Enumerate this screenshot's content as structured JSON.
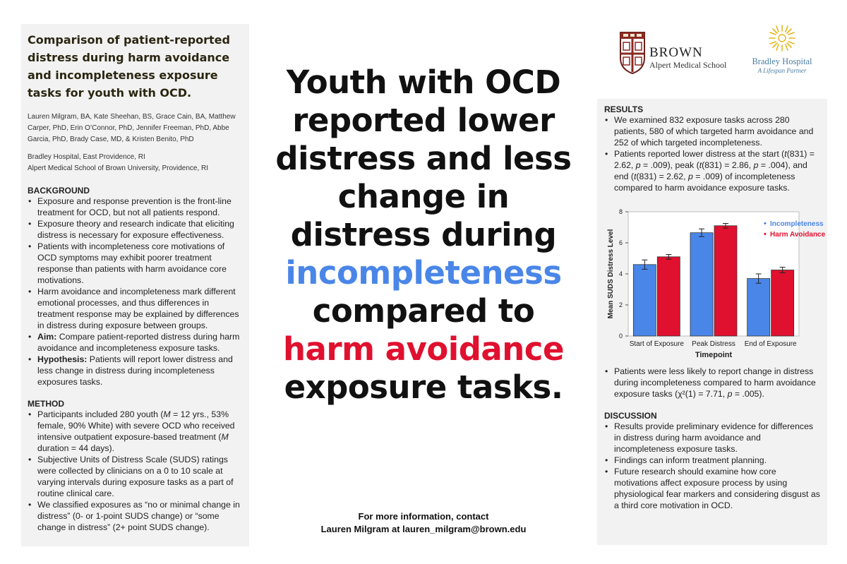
{
  "left": {
    "title": "Comparison of patient-reported distress during harm avoidance and incompleteness exposure tasks for youth with OCD.",
    "authors": "Lauren Milgram, BA, Kate Sheehan, BS, Grace Cain, BA, Matthew Carper, PhD, Erin O’Connor, PhD, Jennifer Freeman, PhD, Abbe Garcia, PhD, Brady Case, MD, & Kristen Benito, PhD",
    "affiliation_1": "Bradley Hospital, East Providence, RI",
    "affiliation_2": "Alpert Medical School of Brown University, Providence, RI",
    "background_heading": "BACKGROUND",
    "background": [
      "Exposure and response prevention is the front-line treatment for OCD, but not all patients respond.",
      "Exposure theory and research indicate that eliciting distress is necessary for exposure effectiveness.",
      "Patients with incompleteness core motivations of OCD symptoms may exhibit poorer treatment response than patients with harm avoidance core motivations.",
      "Harm avoidance and incompleteness mark different emotional processes, and thus differences in treatment response may be explained by differences in distress during exposure between groups."
    ],
    "aim_label": "Aim:",
    "aim_text": " Compare patient-reported distress during harm avoidance and incompleteness exposure tasks.",
    "hypothesis_label": "Hypothesis:",
    "hypothesis_text": " Patients will report lower distress and less change in distress during incompleteness exposures tasks.",
    "method_heading": "METHOD",
    "method_1a": "Participants included 280 youth (",
    "method_1b": "M",
    "method_1c": " = 12 yrs., 53% female, 90% White) with severe OCD who received intensive outpatient exposure-based treatment (",
    "method_1d": "M",
    "method_1e": " duration = 44 days).",
    "method_2": "Subjective Units of Distress Scale (SUDS) ratings were collected by clinicians on a 0 to 10 scale at varying intervals during exposure tasks as a part of routine clinical care.",
    "method_3": "We classified exposures as “no or minimal change in distress” (0- or 1-point SUDS change) or “some change in distress” (2+ point SUDS change)."
  },
  "headline": {
    "line1": "Youth with OCD",
    "line2": "reported lower",
    "line3": "distress and less",
    "line4": "change in",
    "line5": "distress during",
    "line6": "incompleteness",
    "line7": "compared to",
    "line8": "harm avoidance",
    "line9": "exposure tasks."
  },
  "contact": {
    "line1": "For more information, contact",
    "line2": "Lauren Milgram at lauren_milgram@brown.edu"
  },
  "logos": {
    "brown_name": "BROWN",
    "brown_sub": "Alpert Medical School",
    "bradley_name": "Bradley Hospital",
    "bradley_sub": "A Lifespan Partner"
  },
  "right": {
    "results_heading": "RESULTS",
    "results_1": "We examined 832 exposure tasks across 280 patients, 580 of which targeted harm avoidance and 252 of which targeted incompleteness.",
    "results_2a": "Patients reported lower distress at the start (",
    "results_2b": "t",
    "results_2c": "(831) = 2.62, ",
    "results_2d": "p",
    "results_2e": " = .009), peak (",
    "results_2f": "t",
    "results_2g": "(831) = 2.86, ",
    "results_2h": "p",
    "results_2i": " = .004), and end (",
    "results_2j": "t",
    "results_2k": "(831) = 2.62, ",
    "results_2l": "p",
    "results_2m": " = .009) of incompleteness compared to harm avoidance exposure tasks.",
    "results_3a": "Patients were less likely to report change in distress during incompleteness compared to harm avoidance exposure tasks (χ²(1) = 7.71, ",
    "results_3b": "p",
    "results_3c": " = .005).",
    "discussion_heading": "DISCUSSION",
    "discussion": [
      "Results provide preliminary evidence for differences in distress during harm avoidance and incompleteness exposure tasks.",
      "Findings can inform treatment planning.",
      "Future research should examine how core motivations affect exposure process by using physiological fear markers and considering disgust as a third core motivation in OCD."
    ]
  },
  "colors": {
    "incompleteness": "#4a86e8",
    "harm_avoidance": "#e0102f"
  },
  "chart_data": {
    "type": "bar",
    "categories": [
      "Start of Exposure",
      "Peak Distress",
      "End of Exposure"
    ],
    "series": [
      {
        "name": "Incompleteness",
        "values": [
          4.6,
          6.65,
          3.7
        ],
        "errors": [
          0.3,
          0.25,
          0.3
        ],
        "color": "#4a86e8"
      },
      {
        "name": "Harm Avoidance",
        "values": [
          5.1,
          7.1,
          4.25
        ],
        "errors": [
          0.15,
          0.15,
          0.18
        ],
        "color": "#e0102f"
      }
    ],
    "title": "",
    "xlabel": "Timepoint",
    "ylabel": "Mean SUDS Distress Level",
    "ylim": [
      0,
      8
    ],
    "yticks": [
      "0",
      "2",
      "4",
      "6",
      "8"
    ],
    "legend_marker": "•",
    "legend": "top-right"
  }
}
